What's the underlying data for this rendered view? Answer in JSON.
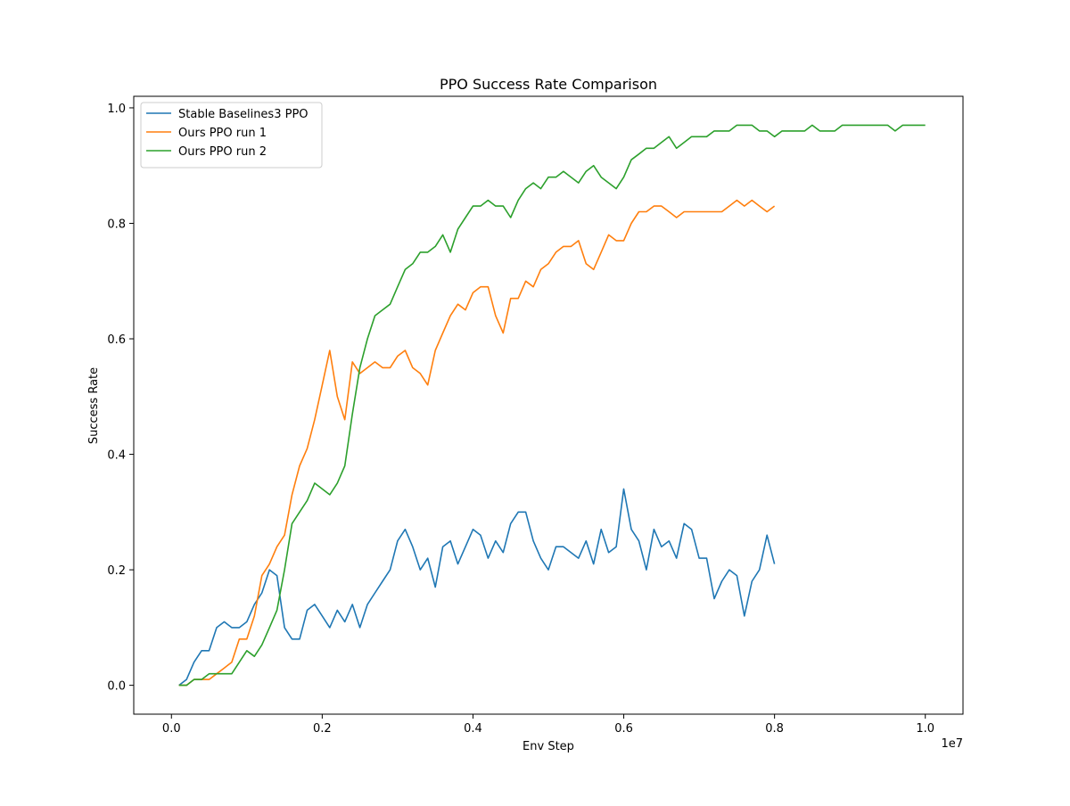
{
  "chart_data": {
    "type": "line",
    "title": "PPO Success Rate Comparison",
    "xlabel": "Env Step",
    "ylabel": "Success Rate",
    "x_offset_label": "1e7",
    "xlim": [
      -0.05,
      1.05
    ],
    "ylim": [
      -0.05,
      1.02
    ],
    "x_unit_note": "x values in units of 1e7 env steps",
    "xticks": [
      0.0,
      0.2,
      0.4,
      0.6,
      0.8,
      1.0
    ],
    "xtick_labels": [
      "0.0",
      "0.2",
      "0.4",
      "0.6",
      "0.8",
      "1.0"
    ],
    "yticks": [
      0.0,
      0.2,
      0.4,
      0.6,
      0.8,
      1.0
    ],
    "ytick_labels": [
      "0.0",
      "0.2",
      "0.4",
      "0.6",
      "0.8",
      "1.0"
    ],
    "grid": false,
    "legend_position": "top-left",
    "series": [
      {
        "name": "Stable Baselines3 PPO",
        "color": "#1f77b4",
        "x": [
          0.01,
          0.02,
          0.03,
          0.04,
          0.05,
          0.06,
          0.07,
          0.08,
          0.09,
          0.1,
          0.11,
          0.12,
          0.13,
          0.14,
          0.15,
          0.16,
          0.17,
          0.18,
          0.19,
          0.2,
          0.21,
          0.22,
          0.23,
          0.24,
          0.25,
          0.26,
          0.27,
          0.28,
          0.29,
          0.3,
          0.31,
          0.32,
          0.33,
          0.34,
          0.35,
          0.36,
          0.37,
          0.38,
          0.39,
          0.4,
          0.41,
          0.42,
          0.43,
          0.44,
          0.45,
          0.46,
          0.47,
          0.48,
          0.49,
          0.5,
          0.51,
          0.52,
          0.53,
          0.54,
          0.55,
          0.56,
          0.57,
          0.58,
          0.59,
          0.6,
          0.61,
          0.62,
          0.63,
          0.64,
          0.65,
          0.66,
          0.67,
          0.68,
          0.69,
          0.7,
          0.71,
          0.72,
          0.73,
          0.74,
          0.75,
          0.76,
          0.77,
          0.78,
          0.79,
          0.8
        ],
        "values": [
          0.0,
          0.01,
          0.04,
          0.06,
          0.06,
          0.1,
          0.11,
          0.1,
          0.1,
          0.11,
          0.14,
          0.16,
          0.2,
          0.19,
          0.1,
          0.08,
          0.08,
          0.13,
          0.14,
          0.12,
          0.1,
          0.13,
          0.11,
          0.14,
          0.1,
          0.14,
          0.16,
          0.18,
          0.2,
          0.25,
          0.27,
          0.24,
          0.2,
          0.22,
          0.17,
          0.24,
          0.25,
          0.21,
          0.24,
          0.27,
          0.26,
          0.22,
          0.25,
          0.23,
          0.28,
          0.3,
          0.3,
          0.25,
          0.22,
          0.2,
          0.24,
          0.24,
          0.23,
          0.22,
          0.25,
          0.21,
          0.27,
          0.23,
          0.24,
          0.34,
          0.27,
          0.25,
          0.2,
          0.27,
          0.24,
          0.25,
          0.22,
          0.28,
          0.27,
          0.22,
          0.22,
          0.15,
          0.18,
          0.2,
          0.19,
          0.12,
          0.18,
          0.2,
          0.26,
          0.21
        ]
      },
      {
        "name": "Ours PPO run 1",
        "color": "#ff7f0e",
        "x": [
          0.01,
          0.02,
          0.03,
          0.04,
          0.05,
          0.06,
          0.07,
          0.08,
          0.09,
          0.1,
          0.11,
          0.12,
          0.13,
          0.14,
          0.15,
          0.16,
          0.17,
          0.18,
          0.19,
          0.2,
          0.21,
          0.22,
          0.23,
          0.24,
          0.25,
          0.26,
          0.27,
          0.28,
          0.29,
          0.3,
          0.31,
          0.32,
          0.33,
          0.34,
          0.35,
          0.36,
          0.37,
          0.38,
          0.39,
          0.4,
          0.41,
          0.42,
          0.43,
          0.44,
          0.45,
          0.46,
          0.47,
          0.48,
          0.49,
          0.5,
          0.51,
          0.52,
          0.53,
          0.54,
          0.55,
          0.56,
          0.57,
          0.58,
          0.59,
          0.6,
          0.61,
          0.62,
          0.63,
          0.64,
          0.65,
          0.66,
          0.67,
          0.68,
          0.69,
          0.7,
          0.71,
          0.72,
          0.73,
          0.74,
          0.75,
          0.76,
          0.77,
          0.78,
          0.79,
          0.8
        ],
        "values": [
          0.0,
          0.0,
          0.01,
          0.01,
          0.01,
          0.02,
          0.03,
          0.04,
          0.08,
          0.08,
          0.12,
          0.19,
          0.21,
          0.24,
          0.26,
          0.33,
          0.38,
          0.41,
          0.46,
          0.52,
          0.58,
          0.5,
          0.46,
          0.56,
          0.54,
          0.55,
          0.56,
          0.55,
          0.55,
          0.57,
          0.58,
          0.55,
          0.54,
          0.52,
          0.58,
          0.61,
          0.64,
          0.66,
          0.65,
          0.68,
          0.69,
          0.69,
          0.64,
          0.61,
          0.67,
          0.67,
          0.7,
          0.69,
          0.72,
          0.73,
          0.75,
          0.76,
          0.76,
          0.77,
          0.73,
          0.72,
          0.75,
          0.78,
          0.77,
          0.77,
          0.8,
          0.82,
          0.82,
          0.83,
          0.83,
          0.82,
          0.81,
          0.82,
          0.82,
          0.82,
          0.82,
          0.82,
          0.82,
          0.83,
          0.84,
          0.83,
          0.84,
          0.83,
          0.82,
          0.83
        ]
      },
      {
        "name": "Ours PPO run 2",
        "color": "#2ca02c",
        "x": [
          0.01,
          0.02,
          0.03,
          0.04,
          0.05,
          0.06,
          0.07,
          0.08,
          0.09,
          0.1,
          0.11,
          0.12,
          0.13,
          0.14,
          0.15,
          0.16,
          0.17,
          0.18,
          0.19,
          0.2,
          0.21,
          0.22,
          0.23,
          0.24,
          0.25,
          0.26,
          0.27,
          0.28,
          0.29,
          0.3,
          0.31,
          0.32,
          0.33,
          0.34,
          0.35,
          0.36,
          0.37,
          0.38,
          0.39,
          0.4,
          0.41,
          0.42,
          0.43,
          0.44,
          0.45,
          0.46,
          0.47,
          0.48,
          0.49,
          0.5,
          0.51,
          0.52,
          0.53,
          0.54,
          0.55,
          0.56,
          0.57,
          0.58,
          0.59,
          0.6,
          0.61,
          0.62,
          0.63,
          0.64,
          0.65,
          0.66,
          0.67,
          0.68,
          0.69,
          0.7,
          0.71,
          0.72,
          0.73,
          0.74,
          0.75,
          0.76,
          0.77,
          0.78,
          0.79,
          0.8,
          0.81,
          0.82,
          0.83,
          0.84,
          0.85,
          0.86,
          0.87,
          0.88,
          0.89,
          0.9,
          0.91,
          0.92,
          0.93,
          0.94,
          0.95,
          0.96,
          0.97,
          0.98,
          0.99,
          1.0
        ],
        "values": [
          0.0,
          0.0,
          0.01,
          0.01,
          0.02,
          0.02,
          0.02,
          0.02,
          0.04,
          0.06,
          0.05,
          0.07,
          0.1,
          0.13,
          0.2,
          0.28,
          0.3,
          0.32,
          0.35,
          0.34,
          0.33,
          0.35,
          0.38,
          0.47,
          0.55,
          0.6,
          0.64,
          0.65,
          0.66,
          0.69,
          0.72,
          0.73,
          0.75,
          0.75,
          0.76,
          0.78,
          0.75,
          0.79,
          0.81,
          0.83,
          0.83,
          0.84,
          0.83,
          0.83,
          0.81,
          0.84,
          0.86,
          0.87,
          0.86,
          0.88,
          0.88,
          0.89,
          0.88,
          0.87,
          0.89,
          0.9,
          0.88,
          0.87,
          0.86,
          0.88,
          0.91,
          0.92,
          0.93,
          0.93,
          0.94,
          0.95,
          0.93,
          0.94,
          0.95,
          0.95,
          0.95,
          0.96,
          0.96,
          0.96,
          0.97,
          0.97,
          0.97,
          0.96,
          0.96,
          0.95,
          0.96,
          0.96,
          0.96,
          0.96,
          0.97,
          0.96,
          0.96,
          0.96,
          0.97,
          0.97,
          0.97,
          0.97,
          0.97,
          0.97,
          0.97,
          0.96,
          0.97,
          0.97,
          0.97,
          0.97
        ]
      }
    ]
  }
}
